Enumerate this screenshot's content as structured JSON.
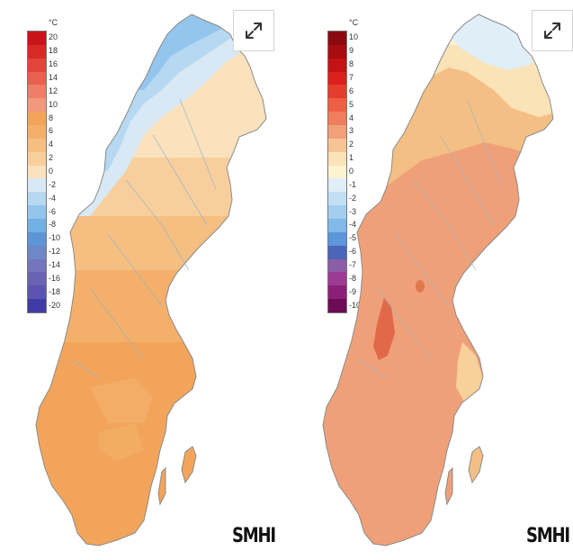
{
  "maps": [
    {
      "scale": {
        "unit": "°C",
        "ticks": [
          "20",
          "18",
          "16",
          "14",
          "12",
          "10",
          "8",
          "6",
          "4",
          "2",
          "0",
          "-2",
          "-4",
          "-6",
          "-8",
          "-10",
          "-12",
          "-14",
          "-16",
          "-18",
          "-20"
        ],
        "colors": [
          "#c8141b",
          "#d62b25",
          "#e0463a",
          "#e8604f",
          "#ee7e67",
          "#f2987e",
          "#f2a55a",
          "#f4b06b",
          "#f6bf82",
          "#f8cf9c",
          "#fbe2bd",
          "#d8e9f5",
          "#b6d8f1",
          "#94c5ec",
          "#73b0e3",
          "#5d95d6",
          "#6d88c4",
          "#7476bb",
          "#6a63b4",
          "#5b55b1",
          "#3f3ca8"
        ]
      },
      "expand_icon": "expand-arrows-icon",
      "logo_text": "SMHI"
    },
    {
      "scale": {
        "unit": "°C",
        "ticks": [
          "10",
          "9",
          "8",
          "7",
          "6",
          "5",
          "4",
          "3",
          "2",
          "1",
          "0",
          "-1",
          "-2",
          "-3",
          "-4",
          "-5",
          "-6",
          "-7",
          "-8",
          "-9",
          "-10"
        ],
        "colors": [
          "#8b0a0f",
          "#a80c10",
          "#c51215",
          "#dc1f1c",
          "#e63c2d",
          "#ee5e44",
          "#f07d5d",
          "#f2a077",
          "#f7c496",
          "#fbe3b8",
          "#fdf4cf",
          "#dfeef7",
          "#c2e0f3",
          "#a3ceee",
          "#82b9e6",
          "#5c97d9",
          "#4a66b6",
          "#8b5da6",
          "#9b3c92",
          "#8c1f78",
          "#6b0c55"
        ]
      },
      "expand_icon": "expand-arrows-icon",
      "logo_text": "SMHI"
    }
  ]
}
